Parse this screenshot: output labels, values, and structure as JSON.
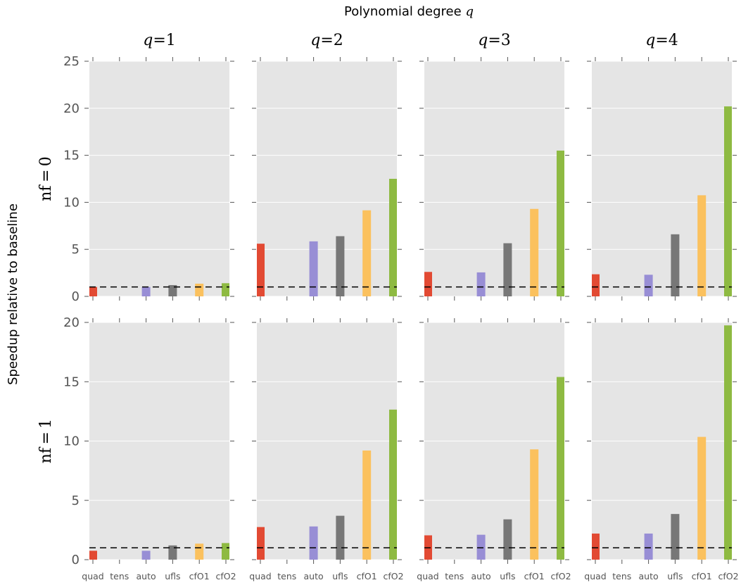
{
  "figure": {
    "suptitle": "Polynomial degree",
    "suptitle_symbol": "q",
    "ylabel": "Speedup relative to baseline",
    "col_titles": [
      {
        "var": "q",
        "eq": "=",
        "val": "1"
      },
      {
        "var": "q",
        "eq": "=",
        "val": "2"
      },
      {
        "var": "q",
        "eq": "=",
        "val": "3"
      },
      {
        "var": "q",
        "eq": "=",
        "val": "4"
      }
    ],
    "row_labels": [
      "nf = 0",
      "nf = 1"
    ]
  },
  "colors": {
    "background": "#e5e5e5",
    "grid": "#ffffff",
    "baseline": "#000000",
    "quad": "#e24a33",
    "tens": "#348abd",
    "auto": "#988ed5",
    "ufls": "#777777",
    "cfO1": "#fbc15e",
    "cfO2": "#8eba42"
  },
  "chart_data": [
    {
      "type": "bar",
      "row": 0,
      "col": 0,
      "categories": [
        "quad",
        "tens",
        "auto",
        "ufls",
        "cfO1",
        "cfO2"
      ],
      "values": [
        1.0,
        0.0,
        1.0,
        1.2,
        1.35,
        1.4
      ],
      "baseline": 1,
      "ylim": [
        0,
        25
      ],
      "yticks": [
        0,
        5,
        10,
        15,
        20,
        25
      ],
      "show_yticklabels": true,
      "show_xticklabels": false
    },
    {
      "type": "bar",
      "row": 0,
      "col": 1,
      "categories": [
        "quad",
        "tens",
        "auto",
        "ufls",
        "cfO1",
        "cfO2"
      ],
      "values": [
        5.6,
        0.0,
        5.85,
        6.4,
        9.15,
        12.5
      ],
      "baseline": 1,
      "ylim": [
        0,
        25
      ],
      "yticks": [
        0,
        5,
        10,
        15,
        20,
        25
      ],
      "show_yticklabels": false,
      "show_xticklabels": false
    },
    {
      "type": "bar",
      "row": 0,
      "col": 2,
      "categories": [
        "quad",
        "tens",
        "auto",
        "ufls",
        "cfO1",
        "cfO2"
      ],
      "values": [
        2.6,
        0.0,
        2.55,
        5.65,
        9.3,
        15.5
      ],
      "baseline": 1,
      "ylim": [
        0,
        25
      ],
      "yticks": [
        0,
        5,
        10,
        15,
        20,
        25
      ],
      "show_yticklabels": false,
      "show_xticklabels": false
    },
    {
      "type": "bar",
      "row": 0,
      "col": 3,
      "categories": [
        "quad",
        "tens",
        "auto",
        "ufls",
        "cfO1",
        "cfO2"
      ],
      "values": [
        2.35,
        0.0,
        2.3,
        6.6,
        10.75,
        20.2
      ],
      "baseline": 1,
      "ylim": [
        0,
        25
      ],
      "yticks": [
        0,
        5,
        10,
        15,
        20,
        25
      ],
      "show_yticklabels": false,
      "show_xticklabels": false
    },
    {
      "type": "bar",
      "row": 1,
      "col": 0,
      "categories": [
        "quad",
        "tens",
        "auto",
        "ufls",
        "cfO1",
        "cfO2"
      ],
      "values": [
        0.75,
        0.0,
        0.75,
        1.2,
        1.35,
        1.4
      ],
      "baseline": 1,
      "ylim": [
        0,
        20
      ],
      "yticks": [
        0,
        5,
        10,
        15,
        20
      ],
      "show_yticklabels": true,
      "show_xticklabels": true
    },
    {
      "type": "bar",
      "row": 1,
      "col": 1,
      "categories": [
        "quad",
        "tens",
        "auto",
        "ufls",
        "cfO1",
        "cfO2"
      ],
      "values": [
        2.75,
        0.0,
        2.8,
        3.7,
        9.2,
        12.65
      ],
      "baseline": 1,
      "ylim": [
        0,
        20
      ],
      "yticks": [
        0,
        5,
        10,
        15,
        20
      ],
      "show_yticklabels": false,
      "show_xticklabels": true
    },
    {
      "type": "bar",
      "row": 1,
      "col": 2,
      "categories": [
        "quad",
        "tens",
        "auto",
        "ufls",
        "cfO1",
        "cfO2"
      ],
      "values": [
        2.05,
        0.0,
        2.1,
        3.4,
        9.3,
        15.4
      ],
      "baseline": 1,
      "ylim": [
        0,
        20
      ],
      "yticks": [
        0,
        5,
        10,
        15,
        20
      ],
      "show_yticklabels": false,
      "show_xticklabels": true
    },
    {
      "type": "bar",
      "row": 1,
      "col": 3,
      "categories": [
        "quad",
        "tens",
        "auto",
        "ufls",
        "cfO1",
        "cfO2"
      ],
      "values": [
        2.2,
        0.0,
        2.2,
        3.85,
        10.35,
        19.75
      ],
      "baseline": 1,
      "ylim": [
        0,
        20
      ],
      "yticks": [
        0,
        5,
        10,
        15,
        20
      ],
      "show_yticklabels": false,
      "show_xticklabels": true
    }
  ]
}
